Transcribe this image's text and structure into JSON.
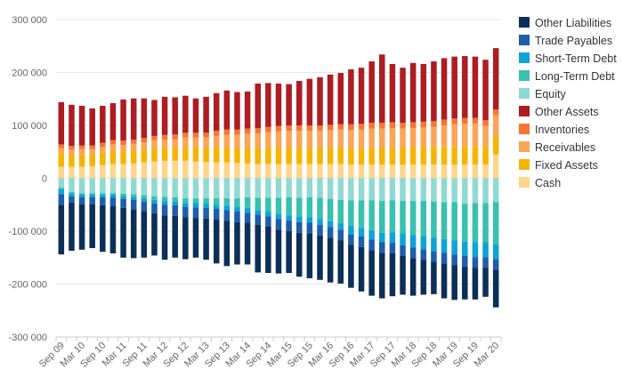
{
  "chart_data": {
    "type": "bar",
    "stacked": true,
    "categories": [
      "Sep 09",
      "Dec 09",
      "Mar 10",
      "Jun 10",
      "Sep 10",
      "Dec 10",
      "Mar 11",
      "Jun 11",
      "Sep 11",
      "Dec 11",
      "Mar 12",
      "Jun 12",
      "Sep 12",
      "Dec 12",
      "Mar 13",
      "Jun 13",
      "Sep 13",
      "Dec 13",
      "Mar 14",
      "Jun 14",
      "Sep 14",
      "Dec 14",
      "Mar 15",
      "Jun 15",
      "Sep 15",
      "Dec 15",
      "Mar 16",
      "Jun 16",
      "Sep 16",
      "Dec 16",
      "Mar 17",
      "Jun 17",
      "Sep 17",
      "Dec 17",
      "Mar 18",
      "Jun 18",
      "Sep 18",
      "Dec 18",
      "Mar 19",
      "Jun 19",
      "Sep 19",
      "Dec 19",
      "Mar 20"
    ],
    "x_tick_labels": [
      "Sep 09",
      "Mar 10",
      "Sep 10",
      "Mar 11",
      "Sep 11",
      "Mar 12",
      "Sep 12",
      "Mar 13",
      "Sep 13",
      "Mar 14",
      "Sep 14",
      "Mar 15",
      "Sep 15",
      "Mar 16",
      "Sep 16",
      "Mar 17",
      "Sep 17",
      "Mar 18",
      "Sep 18",
      "Mar 19",
      "Sep 19",
      "Mar 20"
    ],
    "ylim": [
      -300000,
      300000
    ],
    "yticks": [
      -300000,
      -200000,
      -100000,
      0,
      100000,
      200000,
      300000
    ],
    "ytick_labels": [
      "-300 000",
      "-200 000",
      "-100 000",
      "0",
      "100 000",
      "200 000",
      "300 000"
    ],
    "grid": true,
    "legend_position": "right",
    "series": [
      {
        "name": "Cash",
        "color": "#fdd68a",
        "values": [
          22000,
          22000,
          22000,
          23000,
          25000,
          27000,
          27000,
          28000,
          30000,
          32000,
          33000,
          33000,
          33000,
          32000,
          31000,
          30000,
          30000,
          29000,
          28000,
          27000,
          27000,
          27000,
          27000,
          27000,
          27000,
          27000,
          27000,
          27000,
          26000,
          26000,
          26000,
          26000,
          26000,
          26000,
          26000,
          26000,
          26000,
          26000,
          26000,
          26000,
          26000,
          26000,
          45000
        ]
      },
      {
        "name": "Fixed Assets",
        "color": "#f5b400",
        "values": [
          25000,
          22000,
          23000,
          22000,
          23000,
          25000,
          24000,
          24000,
          24000,
          25000,
          25000,
          25000,
          26000,
          26000,
          26000,
          28000,
          28000,
          28000,
          29000,
          30000,
          30000,
          31000,
          31000,
          31000,
          31000,
          31000,
          31000,
          31000,
          31000,
          31000,
          32000,
          32000,
          32000,
          32000,
          33000,
          33000,
          33000,
          34000,
          34000,
          34000,
          34000,
          33000,
          34000
        ]
      },
      {
        "name": "Receivables",
        "color": "#fba557",
        "values": [
          10000,
          10000,
          10000,
          10000,
          11000,
          12000,
          12000,
          13000,
          14000,
          15000,
          15000,
          16000,
          18000,
          19000,
          20000,
          22000,
          24000,
          25000,
          27000,
          28000,
          30000,
          31000,
          32000,
          32000,
          32000,
          32000,
          33000,
          34000,
          34000,
          35000,
          36000,
          36000,
          37000,
          36000,
          36000,
          37000,
          38000,
          40000,
          42000,
          43000,
          43000,
          40000,
          40000
        ]
      },
      {
        "name": "Inventories",
        "color": "#f47635",
        "values": [
          7000,
          7000,
          7000,
          7000,
          8000,
          8000,
          8000,
          8000,
          8000,
          8000,
          9000,
          9000,
          9000,
          9000,
          9000,
          10000,
          10000,
          10000,
          10000,
          10000,
          10000,
          10000,
          10000,
          10000,
          10000,
          10000,
          10000,
          10000,
          11000,
          11000,
          11000,
          11000,
          11000,
          11000,
          11000,
          11000,
          11000,
          11000,
          11000,
          11000,
          11000,
          11000,
          11000
        ]
      },
      {
        "name": "Other Assets",
        "color": "#ad1d23",
        "values": [
          80000,
          78000,
          75000,
          70000,
          70000,
          70000,
          78000,
          78000,
          75000,
          68000,
          72000,
          70000,
          70000,
          65000,
          68000,
          71000,
          74000,
          71000,
          70000,
          84000,
          83000,
          80000,
          78000,
          84000,
          88000,
          91000,
          95000,
          97000,
          104000,
          106000,
          116000,
          129000,
          110000,
          104000,
          112000,
          109000,
          113000,
          116000,
          117000,
          117000,
          116000,
          114000,
          116000
        ]
      },
      {
        "name": "Equity",
        "color": "#8fd9d4",
        "values": [
          -18000,
          -26000,
          -28000,
          -28000,
          -28000,
          -28000,
          -29000,
          -30000,
          -32000,
          -34000,
          -35000,
          -36000,
          -38000,
          -38000,
          -38000,
          -38000,
          -38000,
          -38000,
          -36000,
          -37000,
          -37000,
          -37000,
          -36000,
          -37000,
          -36000,
          -37000,
          -39000,
          -41000,
          -42000,
          -42000,
          -42000,
          -43000,
          -42000,
          -43000,
          -43000,
          -43000,
          -44000,
          -45000,
          -45000,
          -48000,
          -47000,
          -47000,
          -45000
        ]
      },
      {
        "name": "Long-Term Debt",
        "color": "#37c1ae",
        "values": [
          -2000,
          -3000,
          -3000,
          -3000,
          -3000,
          -3000,
          -4000,
          -5000,
          -6000,
          -7000,
          -8000,
          -8000,
          -9000,
          -9000,
          -10000,
          -12000,
          -14000,
          -16000,
          -20000,
          -23000,
          -26000,
          -30000,
          -34000,
          -36000,
          -38000,
          -40000,
          -42000,
          -44000,
          -48000,
          -52000,
          -56000,
          -60000,
          -60000,
          -62000,
          -64000,
          -66000,
          -68000,
          -70000,
          -72000,
          -72000,
          -74000,
          -74000,
          -80000
        ]
      },
      {
        "name": "Short-Term Debt",
        "color": "#0ca4d4",
        "values": [
          -10000,
          -5000,
          -5000,
          -5000,
          -5000,
          -6000,
          -6000,
          -6000,
          -6000,
          -7000,
          -7000,
          -7000,
          -7000,
          -8000,
          -8000,
          -8000,
          -8000,
          -9000,
          -9000,
          -9000,
          -9000,
          -10000,
          -10000,
          -10000,
          -10000,
          -11000,
          -11000,
          -12000,
          -16000,
          -16000,
          -18000,
          -18000,
          -20000,
          -22000,
          -24000,
          -25000,
          -26000,
          -26000,
          -27000,
          -27000,
          -28000,
          -28000,
          -28000
        ]
      },
      {
        "name": "Trade Payables",
        "color": "#1e5dab",
        "values": [
          -20000,
          -12000,
          -13000,
          -13000,
          -15000,
          -16000,
          -17000,
          -18000,
          -18000,
          -18000,
          -20000,
          -20000,
          -20000,
          -20000,
          -20000,
          -20000,
          -20000,
          -20000,
          -19000,
          -19000,
          -19000,
          -20000,
          -20000,
          -20000,
          -20000,
          -20000,
          -20000,
          -20000,
          -20000,
          -20000,
          -20000,
          -20000,
          -20000,
          -20000,
          -20000,
          -20000,
          -20000,
          -20000,
          -20000,
          -20000,
          -20000,
          -20000,
          -20000
        ]
      },
      {
        "name": "Other Liabilities",
        "color": "#0c2f57",
        "values": [
          -94000,
          -91000,
          -86000,
          -83000,
          -88000,
          -89000,
          -94000,
          -92000,
          -88000,
          -80000,
          -84000,
          -79000,
          -79000,
          -75000,
          -78000,
          -83000,
          -86000,
          -80000,
          -79000,
          -90000,
          -88000,
          -83000,
          -79000,
          -83000,
          -85000,
          -84000,
          -85000,
          -82000,
          -81000,
          -84000,
          -86000,
          -86000,
          -81000,
          -73000,
          -71000,
          -66000,
          -61000,
          -66000,
          -66000,
          -62000,
          -60000,
          -55000,
          -71000
        ]
      }
    ]
  }
}
